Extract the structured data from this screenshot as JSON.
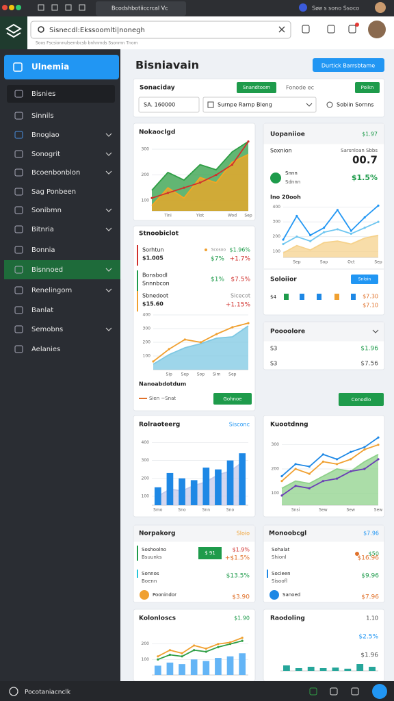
{
  "browser": {
    "tab": "Bcodshbotiiccrcal Vc",
    "profile": "Søø s sono Ssoco"
  },
  "toolbar": {
    "search": "Sisnecdl:Ekssoomlti|nonegh",
    "hint": "Soos  Fscsionnulsernbcsb bnhnmds  Ssonmn  Tnom"
  },
  "sidebar": {
    "brand": "Ulnemia",
    "items": [
      "Bisnies",
      "Sinnils",
      "Bnogiao",
      "Sonogrit",
      "Bcoenbonblon",
      "Sag Ponbeen",
      "Sonibmn",
      "Bitnria",
      "Bonnia",
      "Bisnnoed",
      "Renelingom",
      "Banlat",
      "Semobns",
      "Aelanies"
    ]
  },
  "main": {
    "title": "Bisniavain",
    "action": "Durtick Barrsbtame",
    "filter": {
      "label": "Sonaciday",
      "primary": "Snandtoom",
      "secondary": "Fonode ec",
      "apply": "Poikn",
      "amount": "SA. 160000",
      "range": "Surnpe Rarnp Bleng",
      "search": "Sobiin Sornns"
    }
  },
  "panels": [
    {
      "title": "Nokaoclgd",
      "chart": {
        "type": "area",
        "categories": [
          null,
          "Tini",
          null,
          "Yiot",
          null,
          "Wod",
          "Sep"
        ],
        "ylim": [
          60,
          340
        ],
        "yticks": [
          100,
          200,
          300
        ],
        "grid": true,
        "series": [
          {
            "type": "area",
            "color": "#2e9e44",
            "values": [
              140,
              210,
              180,
              240,
              220,
              290,
              330
            ]
          },
          {
            "type": "area",
            "color": "#f5a623",
            "values": [
              80,
              150,
              110,
              190,
              170,
              250,
              280
            ]
          },
          {
            "type": "line",
            "color": "#d0312d",
            "values": [
              110,
              130,
              150,
              170,
              200,
              240,
              330
            ]
          }
        ]
      }
    },
    {
      "title": "Uopaniioe",
      "value": "$1.97",
      "label": "Soxnion",
      "sublabel": "Sarsnloan Sbbs",
      "metric": "00.7",
      "item": "Snnn",
      "item_sub": "Sdnnn",
      "change": "$1.5%",
      "chart_title": "Ino 20ooh",
      "chart": {
        "type": "line",
        "categories": [
          null,
          "Sep",
          null,
          "Sop",
          null,
          "Oct",
          null,
          "Sep"
        ],
        "ylim": [
          60,
          430
        ],
        "yticks": [
          100,
          200,
          300,
          400
        ],
        "grid": true,
        "series": [
          {
            "type": "area",
            "color": "#f6d28c",
            "values": [
              90,
              140,
              110,
              160,
              170,
              150,
              190,
              210
            ]
          },
          {
            "type": "line",
            "color": "#6ec6f0",
            "values": [
              150,
              200,
              170,
              230,
              250,
              220,
              260,
              300
            ]
          },
          {
            "type": "line",
            "color": "#2196f3",
            "values": [
              180,
              340,
              210,
              260,
              380,
              240,
              330,
              410
            ]
          }
        ]
      },
      "section": "Soloiior",
      "toggle": "Snloin",
      "dot_label": "$4",
      "dot_values": [
        "$7.30",
        "$7.10"
      ]
    },
    {
      "title": "Poooolore",
      "rows": [
        [
          "S3",
          "$1.96"
        ],
        [
          "S3",
          "$7.56"
        ]
      ]
    },
    {
      "title": "Stnoobiclot",
      "rows": [
        {
          "name": "Sorhtun",
          "value": "$1.005",
          "tag": "Scosoo",
          "a": "$1.96%",
          "b": "$7%",
          "c": "+1.7%"
        },
        {
          "name": "Bonsbodl",
          "value": "Snnnbcon",
          "b": "$1%",
          "c": "$7.5%"
        },
        {
          "name": "Sbnedoot",
          "value": "$15.60",
          "a": "Sicecot",
          "c": "+1.15%"
        }
      ],
      "chart": {
        "type": "area",
        "categories": [
          null,
          "Sip",
          "Sep",
          "Sop",
          "Sim",
          "Sep",
          null
        ],
        "ylim": [
          0,
          400
        ],
        "yticks": [
          100,
          200,
          300,
          400
        ],
        "grid": true,
        "series": [
          {
            "type": "area",
            "color": "#7ec8e3",
            "values": [
              40,
              110,
              160,
              190,
              230,
              240,
              320
            ]
          },
          {
            "type": "line",
            "color": "#f0a030",
            "values": [
              60,
              150,
              220,
              200,
              260,
              310,
              340
            ]
          }
        ]
      },
      "legend_title": "Nanoabdotdum",
      "legend": "Sien ~Snat",
      "button": "Gohnoe",
      "button2": "Conodlo"
    },
    {
      "title": "Rolraoteerg",
      "tag": "Sisconc",
      "chart": {
        "type": "bar",
        "categories": [
          "Smo",
          null,
          "Sno",
          null,
          "Snn",
          null,
          "Sno",
          null
        ],
        "ylim": [
          50,
          440
        ],
        "yticks": [
          100,
          200,
          300,
          400
        ],
        "grid": true,
        "series": [
          {
            "type": "area",
            "color": "#c5cae9",
            "values": [
              100,
              140,
              130,
              160,
              180,
              220,
              240,
              290
            ]
          },
          {
            "type": "bar",
            "color": "#1e88e5",
            "values": [
              150,
              230,
              200,
              190,
              260,
              250,
              300,
              340
            ]
          }
        ]
      }
    },
    {
      "title": "Kuootdnng",
      "chart": {
        "type": "line",
        "categories": [
          null,
          "Snsi",
          null,
          "Sew",
          null,
          "Sew",
          null,
          "Sew"
        ],
        "ylim": [
          50,
          350
        ],
        "yticks": [
          100,
          200,
          300
        ],
        "grid": true,
        "series": [
          {
            "type": "area",
            "color": "#8fd18b",
            "values": [
              120,
              150,
              140,
              170,
              200,
              190,
              230,
              260
            ]
          },
          {
            "type": "line",
            "color": "#f0a030",
            "values": [
              150,
              200,
              180,
              230,
              220,
              240,
              280,
              300
            ]
          },
          {
            "type": "line",
            "color": "#1e88e5",
            "values": [
              170,
              220,
              210,
              260,
              240,
              270,
              290,
              330
            ]
          },
          {
            "type": "line",
            "color": "#6a3fb5",
            "values": [
              90,
              130,
              120,
              150,
              160,
              190,
              200,
              240
            ]
          }
        ]
      }
    },
    {
      "title": "Norpakorg",
      "tag": "Sloio",
      "rows": [
        {
          "name": "Soshoolno",
          "sub": "Bsuunks",
          "a": "$ 91",
          "b": "$1.9%",
          "c": "+$1.5%"
        },
        {
          "name": "Sonnos",
          "sub": "Boenn",
          "c": "$13.5%"
        },
        {
          "name": "Poonindor",
          "c": "$3.90"
        }
      ]
    },
    {
      "title": "Monoobcgl",
      "tag": "$7.96",
      "rows": [
        {
          "name": "Sohalat",
          "sub": "Shionl",
          "b": "$50",
          "c": "$16.96"
        },
        {
          "name": "Socieen",
          "sub": "Sisoofl",
          "c": "$9.96"
        },
        {
          "name": "Sanoed",
          "c": "$7.96"
        }
      ]
    },
    {
      "title": "Kolonloscs",
      "tag": "$1.90",
      "chart": {
        "type": "bar",
        "ylim": [
          0,
          300
        ],
        "yticks": [
          100,
          200
        ],
        "grid": true,
        "series": [
          {
            "type": "bar",
            "color": "#64b5f6",
            "values": [
              60,
              80,
              70,
              100,
              90,
              110,
              120,
              140
            ]
          },
          {
            "type": "line",
            "color": "#2e9e44",
            "values": [
              100,
              130,
              120,
              160,
              150,
              180,
              200,
              220
            ]
          },
          {
            "type": "line",
            "color": "#f0a030",
            "values": [
              120,
              160,
              140,
              190,
              170,
              200,
              210,
              240
            ]
          }
        ]
      }
    },
    {
      "title": "Raodoling",
      "tag": "1.10",
      "kpi": [
        "$2.5%",
        "$1.96"
      ],
      "chart": {
        "type": "bar",
        "ylim": [
          0,
          100
        ],
        "grid": false,
        "series": [
          {
            "type": "bar",
            "color": "#26a69a",
            "values": [
              20,
              10,
              15,
              10,
              12,
              8,
              25,
              15
            ]
          }
        ]
      }
    }
  ],
  "footer": {
    "status": "Pocotaniacnclk"
  }
}
